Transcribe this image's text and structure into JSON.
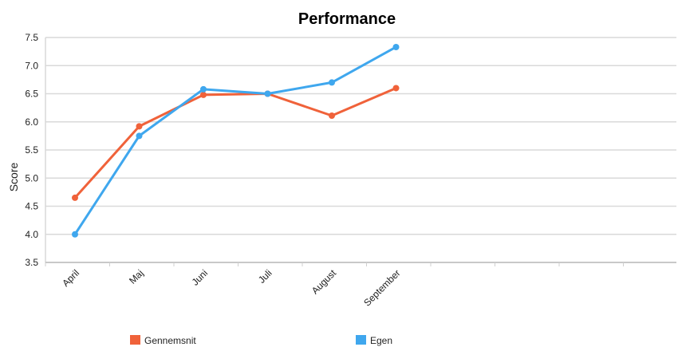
{
  "chart_data": {
    "type": "line",
    "title": "Performance",
    "xlabel": "",
    "ylabel": "Score",
    "ylim": [
      3.5,
      7.5
    ],
    "yticks": [
      "7.5",
      "7.0",
      "6.5",
      "6.0",
      "5.5",
      "5.0",
      "4.5",
      "4.0",
      "3.5"
    ],
    "categories": [
      "April",
      "Maj",
      "Juni",
      "Juli",
      "August",
      "September"
    ],
    "grid": true,
    "legend_position": "bottom",
    "series": [
      {
        "name": "Gennemsnit",
        "color": "#f0623a",
        "values": [
          4.65,
          5.92,
          6.48,
          6.5,
          6.11,
          6.6
        ]
      },
      {
        "name": "Egen",
        "color": "#3fa7ee",
        "values": [
          4.0,
          5.75,
          6.58,
          6.5,
          6.7,
          7.33
        ]
      }
    ]
  }
}
